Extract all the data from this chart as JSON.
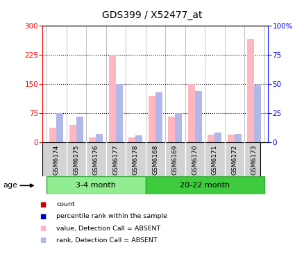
{
  "title": "GDS399 / X52477_at",
  "samples": [
    "GSM6174",
    "GSM6175",
    "GSM6176",
    "GSM6177",
    "GSM6178",
    "GSM6168",
    "GSM6169",
    "GSM6170",
    "GSM6171",
    "GSM6172",
    "GSM6173"
  ],
  "groups": [
    {
      "label": "3-4 month",
      "start": 0,
      "end": 5,
      "color": "#90EE90"
    },
    {
      "label": "20-22 month",
      "start": 5,
      "end": 11,
      "color": "#3ECC3E"
    }
  ],
  "values": [
    38,
    45,
    12,
    225,
    12,
    120,
    65,
    150,
    20,
    20,
    265
  ],
  "ranks": [
    25,
    22,
    7,
    50,
    6,
    43,
    25,
    44,
    8,
    7,
    49
  ],
  "detection_call": [
    "ABSENT",
    "ABSENT",
    "ABSENT",
    "ABSENT",
    "ABSENT",
    "ABSENT",
    "ABSENT",
    "ABSENT",
    "ABSENT",
    "ABSENT",
    "ABSENT"
  ],
  "ylim_left": [
    0,
    300
  ],
  "ylim_right": [
    0,
    100
  ],
  "yticks_left": [
    0,
    75,
    150,
    225,
    300
  ],
  "yticks_right": [
    0,
    25,
    50,
    75,
    100
  ],
  "bar_width": 0.35,
  "value_color_absent": "#FFB6C1",
  "rank_color_absent": "#B0B8E8",
  "value_color_present": "#FF0000",
  "rank_color_present": "#0000FF",
  "background_color": "#ffffff",
  "xticklabel_bg": "#D3D3D3",
  "group_border_color": "#2EAA2E",
  "age_label": "age",
  "legend_items": [
    {
      "label": "count",
      "color": "#CC0000"
    },
    {
      "label": "percentile rank within the sample",
      "color": "#0000CC"
    },
    {
      "label": "value, Detection Call = ABSENT",
      "color": "#FFB6C1"
    },
    {
      "label": "rank, Detection Call = ABSENT",
      "color": "#B0B8E8"
    }
  ]
}
